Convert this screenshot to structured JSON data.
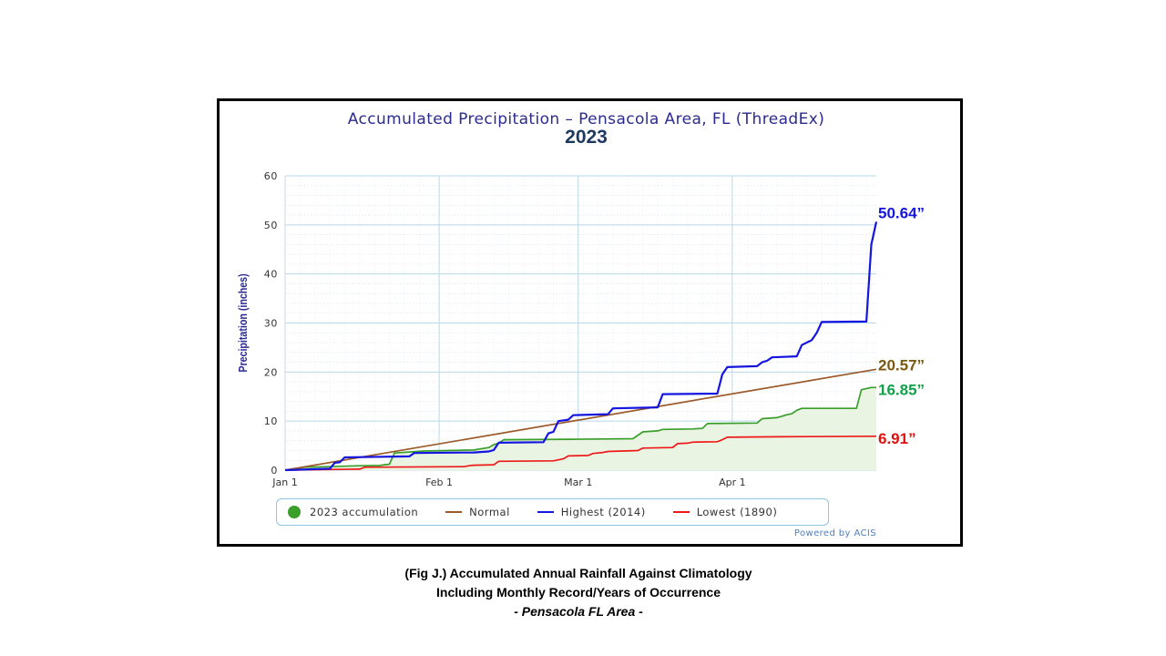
{
  "chart_data": {
    "type": "line",
    "title": "Accumulated Precipitation – Pensacola Area, FL (ThreadEx)",
    "subtitle": "2023",
    "ylabel": "Precipitation (inches)",
    "xlabel": "",
    "ylim": [
      0,
      60
    ],
    "yticks": [
      0,
      10,
      20,
      30,
      40,
      50,
      60
    ],
    "xlim": [
      "2023-01-01",
      "2023-04-30"
    ],
    "xticks": [
      {
        "label": "Jan 1",
        "date": "2023-01-01"
      },
      {
        "label": "Feb 1",
        "date": "2023-02-01"
      },
      {
        "label": "Mar 1",
        "date": "2023-03-01"
      },
      {
        "label": "Apr 1",
        "date": "2023-04-01"
      }
    ],
    "grid": true,
    "legend_placement": "bottom",
    "series": [
      {
        "name": "2023 accumulation",
        "color": "#3a9e2a",
        "fill": "#e9f4e2",
        "end_label": "16.85”",
        "end_label_color": "#12a04a",
        "points": [
          [
            "2023-01-01",
            0
          ],
          [
            "2023-01-05",
            0.6
          ],
          [
            "2023-01-16",
            0.9
          ],
          [
            "2023-01-20",
            0.95
          ],
          [
            "2023-01-21",
            1.1
          ],
          [
            "2023-01-22",
            1.2
          ],
          [
            "2023-01-23",
            3.5
          ],
          [
            "2023-01-26",
            3.7
          ],
          [
            "2023-01-29",
            3.9
          ],
          [
            "2023-02-08",
            4.1
          ],
          [
            "2023-02-11",
            4.6
          ],
          [
            "2023-02-12",
            5.2
          ],
          [
            "2023-02-13",
            5.5
          ],
          [
            "2023-02-14",
            6.2
          ],
          [
            "2023-02-28",
            6.3
          ],
          [
            "2023-03-12",
            6.4
          ],
          [
            "2023-03-14",
            7.8
          ],
          [
            "2023-03-17",
            8.0
          ],
          [
            "2023-03-18",
            8.3
          ],
          [
            "2023-03-24",
            8.4
          ],
          [
            "2023-03-26",
            8.5
          ],
          [
            "2023-03-27",
            9.5
          ],
          [
            "2023-04-06",
            9.6
          ],
          [
            "2023-04-07",
            10.5
          ],
          [
            "2023-04-10",
            10.7
          ],
          [
            "2023-04-12",
            11.3
          ],
          [
            "2023-04-13",
            11.5
          ],
          [
            "2023-04-14",
            12.2
          ],
          [
            "2023-04-15",
            12.6
          ],
          [
            "2023-04-26",
            12.6
          ],
          [
            "2023-04-27",
            16.4
          ],
          [
            "2023-04-29",
            16.85
          ],
          [
            "2023-04-30",
            16.85
          ]
        ]
      },
      {
        "name": "Normal",
        "color": "#9b5a2a",
        "end_label": "20.57”",
        "end_label_color": "#7a5a10",
        "points": [
          [
            "2023-01-01",
            0
          ],
          [
            "2023-04-30",
            20.57
          ]
        ]
      },
      {
        "name": "Highest (2014)",
        "color": "#1515e0",
        "end_label": "50.64”",
        "end_label_color": "#1515e0",
        "points": [
          [
            "2023-01-01",
            0
          ],
          [
            "2023-01-10",
            0.3
          ],
          [
            "2023-01-11",
            1.5
          ],
          [
            "2023-01-12",
            1.6
          ],
          [
            "2023-01-13",
            2.6
          ],
          [
            "2023-01-26",
            2.8
          ],
          [
            "2023-01-27",
            3.5
          ],
          [
            "2023-02-08",
            3.6
          ],
          [
            "2023-02-11",
            3.8
          ],
          [
            "2023-02-12",
            4.1
          ],
          [
            "2023-02-13",
            5.6
          ],
          [
            "2023-02-22",
            5.7
          ],
          [
            "2023-02-23",
            7.5
          ],
          [
            "2023-02-24",
            7.8
          ],
          [
            "2023-02-25",
            10.0
          ],
          [
            "2023-02-27",
            10.3
          ],
          [
            "2023-02-28",
            11.2
          ],
          [
            "2023-03-07",
            11.4
          ],
          [
            "2023-03-08",
            12.6
          ],
          [
            "2023-03-17",
            12.8
          ],
          [
            "2023-03-18",
            15.5
          ],
          [
            "2023-03-29",
            15.6
          ],
          [
            "2023-03-30",
            19.5
          ],
          [
            "2023-03-31",
            21.0
          ],
          [
            "2023-04-06",
            21.2
          ],
          [
            "2023-04-07",
            22.0
          ],
          [
            "2023-04-08",
            22.3
          ],
          [
            "2023-04-09",
            23.0
          ],
          [
            "2023-04-14",
            23.2
          ],
          [
            "2023-04-15",
            25.5
          ],
          [
            "2023-04-16",
            26.0
          ],
          [
            "2023-04-17",
            26.5
          ],
          [
            "2023-04-18",
            28.0
          ],
          [
            "2023-04-19",
            30.2
          ],
          [
            "2023-04-28",
            30.3
          ],
          [
            "2023-04-29",
            46.0
          ],
          [
            "2023-04-30",
            50.64
          ]
        ]
      },
      {
        "name": "Lowest (1890)",
        "color": "#ee1a1a",
        "end_label": "6.91”",
        "end_label_color": "#e01010",
        "points": [
          [
            "2023-01-01",
            0
          ],
          [
            "2023-01-16",
            0.2
          ],
          [
            "2023-01-17",
            0.6
          ],
          [
            "2023-02-06",
            0.7
          ],
          [
            "2023-02-07",
            0.9
          ],
          [
            "2023-02-08",
            1.0
          ],
          [
            "2023-02-12",
            1.1
          ],
          [
            "2023-02-13",
            1.8
          ],
          [
            "2023-02-24",
            1.9
          ],
          [
            "2023-02-26",
            2.3
          ],
          [
            "2023-02-27",
            2.9
          ],
          [
            "2023-03-03",
            3.0
          ],
          [
            "2023-03-04",
            3.4
          ],
          [
            "2023-03-06",
            3.6
          ],
          [
            "2023-03-07",
            3.8
          ],
          [
            "2023-03-13",
            4.0
          ],
          [
            "2023-03-14",
            4.5
          ],
          [
            "2023-03-20",
            4.6
          ],
          [
            "2023-03-21",
            5.4
          ],
          [
            "2023-03-23",
            5.5
          ],
          [
            "2023-03-24",
            5.7
          ],
          [
            "2023-03-29",
            5.8
          ],
          [
            "2023-03-30",
            6.2
          ],
          [
            "2023-03-31",
            6.7
          ],
          [
            "2023-04-10",
            6.8
          ],
          [
            "2023-04-30",
            6.91
          ]
        ]
      }
    ]
  },
  "legend": {
    "items": [
      {
        "label": "2023 accumulation",
        "marker": "dot",
        "color": "#3a9e2a"
      },
      {
        "label": "Normal",
        "marker": "line",
        "color": "#9b5a2a"
      },
      {
        "label": "Highest (2014)",
        "marker": "line",
        "color": "#1515e0"
      },
      {
        "label": "Lowest (1890)",
        "marker": "line",
        "color": "#ee1a1a"
      }
    ]
  },
  "credit": "Powered by ACIS",
  "caption": {
    "line1": "(Fig J.) Accumulated Annual Rainfall Against Climatology",
    "line2": "Including Monthly Record/Years of Occurrence",
    "line3": "- Pensacola FL Area -"
  }
}
